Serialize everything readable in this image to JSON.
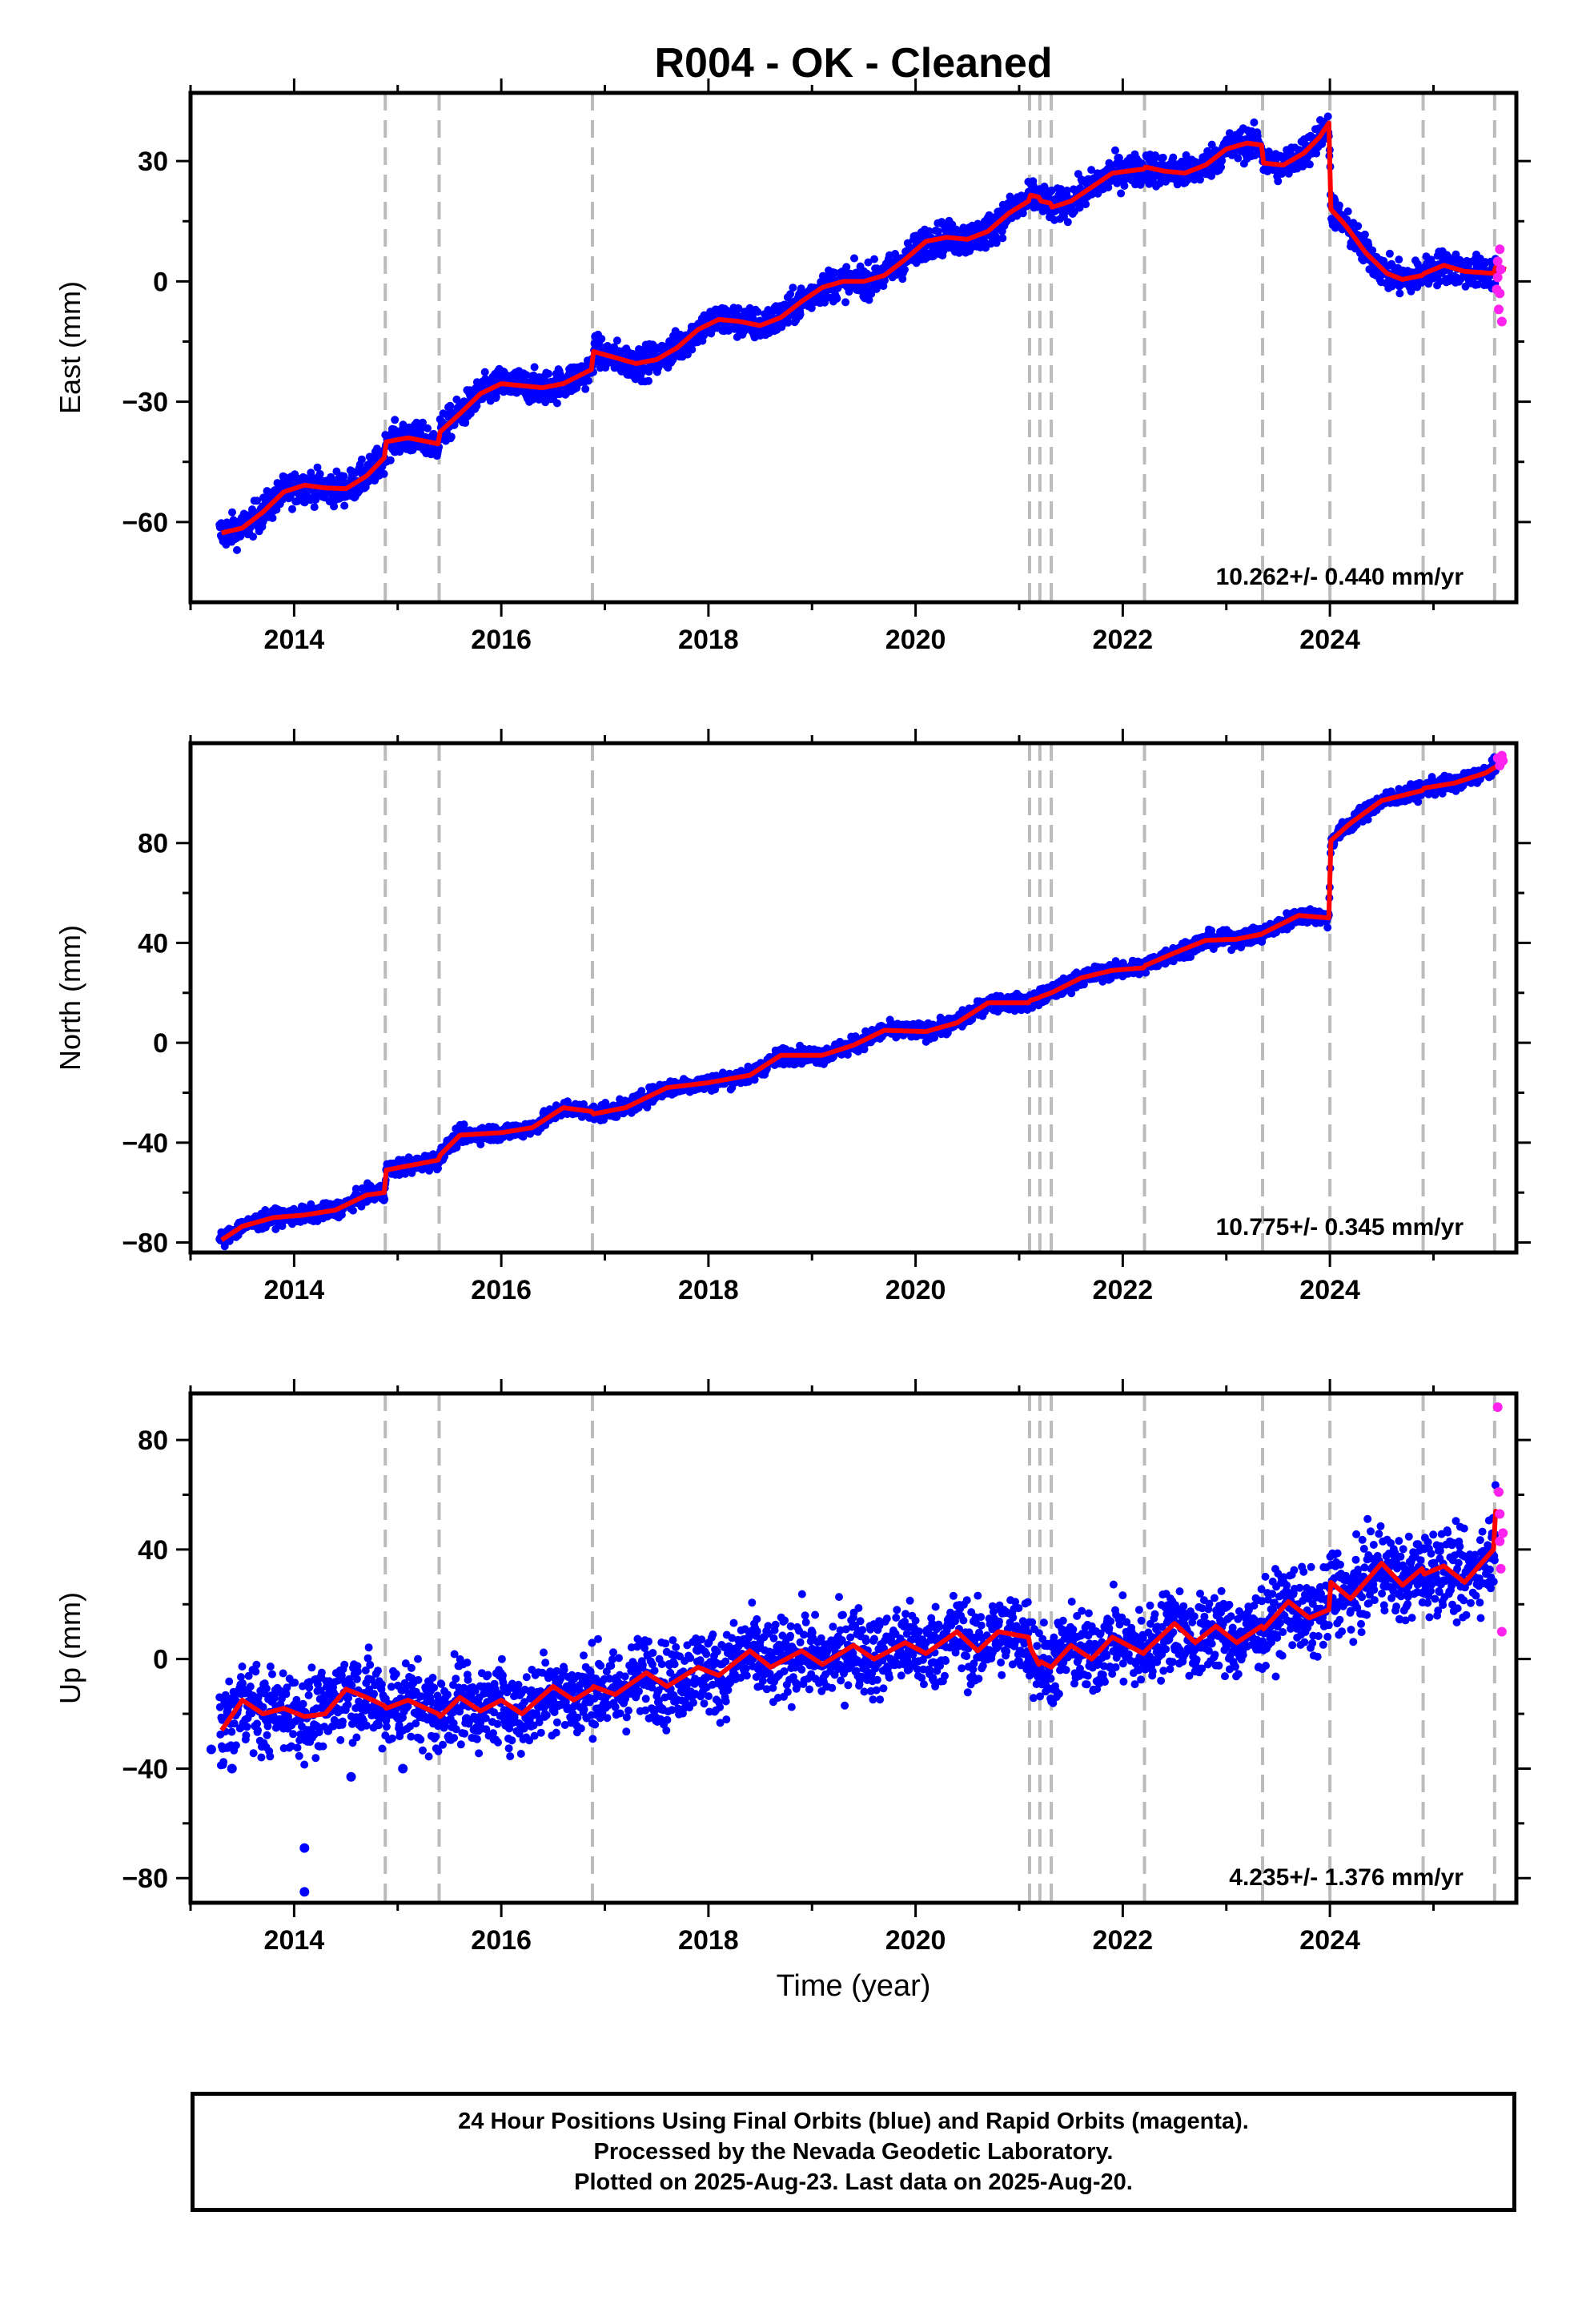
{
  "title": "R004  - OK - Cleaned",
  "colors": {
    "final": "#0000ff",
    "rapid": "#ff22ee",
    "model": "#ff0000",
    "offset_lines": "#bbbbbb"
  },
  "x_axis": {
    "label": "Time (year)",
    "range": [
      2013.0,
      2025.8
    ],
    "ticks": [
      "2014",
      "2016",
      "2018",
      "2020",
      "2022",
      "2024"
    ],
    "minor_step": 1
  },
  "offset_epochs": [
    2014.88,
    2015.4,
    2016.88,
    2021.1,
    2021.2,
    2021.31,
    2022.21,
    2023.35,
    2024.0,
    2024.9,
    2025.59
  ],
  "chart_data": [
    {
      "type": "scatter",
      "ylabel": "East (mm)",
      "ylim": [
        -80,
        47
      ],
      "yticks": [
        "30",
        "0",
        "−30",
        "−60"
      ],
      "ytick_values": [
        30,
        0,
        -30,
        -60
      ],
      "rate": "10.262+/- 0.440 mm/yr",
      "scatter": 2.0,
      "model": [
        [
          2013.3,
          -62.7
        ],
        [
          2013.5,
          -61.5
        ],
        [
          2013.7,
          -57.5
        ],
        [
          2013.9,
          -52.5
        ],
        [
          2014.1,
          -50.8
        ],
        [
          2014.3,
          -51.5
        ],
        [
          2014.5,
          -51.7
        ],
        [
          2014.7,
          -48.5
        ],
        [
          2014.87,
          -44.0
        ],
        [
          2014.89,
          -40.0
        ],
        [
          2015.1,
          -39.0
        ],
        [
          2015.39,
          -40.5
        ],
        [
          2015.41,
          -37.5
        ],
        [
          2015.6,
          -33.0
        ],
        [
          2015.8,
          -28.0
        ],
        [
          2016.0,
          -25.5
        ],
        [
          2016.2,
          -26.0
        ],
        [
          2016.4,
          -26.5
        ],
        [
          2016.6,
          -25.5
        ],
        [
          2016.87,
          -22.0
        ],
        [
          2016.89,
          -17.5
        ],
        [
          2017.1,
          -19.0
        ],
        [
          2017.3,
          -20.5
        ],
        [
          2017.5,
          -19.5
        ],
        [
          2017.7,
          -16.5
        ],
        [
          2017.9,
          -12.0
        ],
        [
          2018.1,
          -9.5
        ],
        [
          2018.3,
          -10.0
        ],
        [
          2018.5,
          -11.0
        ],
        [
          2018.7,
          -9.0
        ],
        [
          2018.9,
          -5.0
        ],
        [
          2019.1,
          -1.5
        ],
        [
          2019.3,
          0.0
        ],
        [
          2019.5,
          0.0
        ],
        [
          2019.7,
          1.5
        ],
        [
          2019.9,
          5.5
        ],
        [
          2020.1,
          10.0
        ],
        [
          2020.3,
          11.0
        ],
        [
          2020.5,
          10.5
        ],
        [
          2020.7,
          12.5
        ],
        [
          2020.9,
          17.0
        ],
        [
          2021.09,
          20.0
        ],
        [
          2021.11,
          21.5
        ],
        [
          2021.19,
          21.0
        ],
        [
          2021.21,
          20.0
        ],
        [
          2021.3,
          19.5
        ],
        [
          2021.32,
          18.5
        ],
        [
          2021.5,
          20.0
        ],
        [
          2021.7,
          23.5
        ],
        [
          2021.9,
          27.0
        ],
        [
          2022.2,
          28.0
        ],
        [
          2022.22,
          28.5
        ],
        [
          2022.4,
          27.5
        ],
        [
          2022.6,
          27.0
        ],
        [
          2022.8,
          29.0
        ],
        [
          2023.0,
          33.0
        ],
        [
          2023.2,
          34.5
        ],
        [
          2023.34,
          34.0
        ],
        [
          2023.36,
          29.5
        ],
        [
          2023.55,
          29.0
        ],
        [
          2023.75,
          32.0
        ],
        [
          2023.9,
          36.0
        ],
        [
          2023.99,
          39.5
        ],
        [
          2024.01,
          18.0
        ],
        [
          2024.15,
          14.0
        ],
        [
          2024.35,
          7.0
        ],
        [
          2024.55,
          2.0
        ],
        [
          2024.7,
          0.5
        ],
        [
          2024.89,
          1.5
        ],
        [
          2024.91,
          2.0
        ],
        [
          2025.1,
          4.0
        ],
        [
          2025.3,
          2.5
        ],
        [
          2025.58,
          2.0
        ],
        [
          2025.6,
          3.5
        ],
        [
          2025.7,
          3.0
        ]
      ],
      "rapid": [
        [
          2025.61,
          -2
        ],
        [
          2025.62,
          1
        ],
        [
          2025.62,
          5
        ],
        [
          2025.63,
          -7
        ],
        [
          2025.64,
          8
        ],
        [
          2025.64,
          -3
        ],
        [
          2025.65,
          3
        ],
        [
          2025.66,
          -10
        ]
      ]
    },
    {
      "type": "scatter",
      "ylabel": "North (mm)",
      "ylim": [
        -84,
        120
      ],
      "yticks": [
        "80",
        "40",
        "0",
        "−40",
        "−80"
      ],
      "ytick_values": [
        80,
        40,
        0,
        -40,
        -80
      ],
      "rate": "10.775+/- 0.345 mm/yr",
      "scatter": 1.6,
      "model": [
        [
          2013.3,
          -79.0
        ],
        [
          2013.5,
          -73.5
        ],
        [
          2013.8,
          -70.0
        ],
        [
          2014.1,
          -69.0
        ],
        [
          2014.4,
          -67.0
        ],
        [
          2014.7,
          -61.0
        ],
        [
          2014.87,
          -60.0
        ],
        [
          2014.89,
          -51.0
        ],
        [
          2015.39,
          -47.0
        ],
        [
          2015.41,
          -45.0
        ],
        [
          2015.6,
          -37.0
        ],
        [
          2016.0,
          -36.0
        ],
        [
          2016.3,
          -34.0
        ],
        [
          2016.6,
          -26.0
        ],
        [
          2016.87,
          -27.5
        ],
        [
          2016.89,
          -28.5
        ],
        [
          2017.2,
          -26.0
        ],
        [
          2017.6,
          -18.0
        ],
        [
          2018.0,
          -16.0
        ],
        [
          2018.4,
          -13.0
        ],
        [
          2018.7,
          -5.0
        ],
        [
          2019.1,
          -5.0
        ],
        [
          2019.4,
          -1.0
        ],
        [
          2019.7,
          5.0
        ],
        [
          2020.1,
          4.5
        ],
        [
          2020.4,
          8.0
        ],
        [
          2020.7,
          16.0
        ],
        [
          2021.09,
          16.0
        ],
        [
          2021.11,
          17.0
        ],
        [
          2021.19,
          18.0
        ],
        [
          2021.21,
          18.5
        ],
        [
          2021.31,
          20.0
        ],
        [
          2021.6,
          26.0
        ],
        [
          2021.9,
          29.0
        ],
        [
          2022.2,
          30.0
        ],
        [
          2022.22,
          31.0
        ],
        [
          2022.5,
          36.0
        ],
        [
          2022.8,
          41.0
        ],
        [
          2023.1,
          41.5
        ],
        [
          2023.34,
          43.5
        ],
        [
          2023.36,
          44.0
        ],
        [
          2023.7,
          51.0
        ],
        [
          2023.99,
          50.0
        ],
        [
          2024.01,
          81.0
        ],
        [
          2024.2,
          88.0
        ],
        [
          2024.5,
          97.0
        ],
        [
          2024.89,
          101.0
        ],
        [
          2024.91,
          102.0
        ],
        [
          2025.2,
          104.0
        ],
        [
          2025.5,
          108.0
        ],
        [
          2025.68,
          112.5
        ]
      ],
      "rapid": [
        [
          2025.62,
          114
        ],
        [
          2025.64,
          111
        ],
        [
          2025.66,
          115
        ],
        [
          2025.67,
          113
        ]
      ]
    },
    {
      "type": "scatter",
      "ylabel": "Up (mm)",
      "ylim": [
        -89,
        97
      ],
      "yticks": [
        "80",
        "40",
        "0",
        "−40",
        "−80"
      ],
      "ytick_values": [
        80,
        40,
        0,
        -40,
        -80
      ],
      "rate": "4.235+/- 1.376 mm/yr",
      "scatter": 7.5,
      "model": [
        [
          2013.3,
          -26.0
        ],
        [
          2013.5,
          -15.0
        ],
        [
          2013.7,
          -20.0
        ],
        [
          2013.9,
          -18.0
        ],
        [
          2014.1,
          -21.0
        ],
        [
          2014.3,
          -20.0
        ],
        [
          2014.5,
          -11.0
        ],
        [
          2014.7,
          -14.0
        ],
        [
          2014.87,
          -17.0
        ],
        [
          2014.89,
          -18.0
        ],
        [
          2015.1,
          -15.0
        ],
        [
          2015.39,
          -20.0
        ],
        [
          2015.41,
          -21.0
        ],
        [
          2015.6,
          -14.0
        ],
        [
          2015.8,
          -19.0
        ],
        [
          2016.0,
          -15.0
        ],
        [
          2016.2,
          -20.0
        ],
        [
          2016.5,
          -10.0
        ],
        [
          2016.7,
          -15.0
        ],
        [
          2016.87,
          -11.0
        ],
        [
          2016.89,
          -10.0
        ],
        [
          2017.1,
          -13.0
        ],
        [
          2017.4,
          -5.0
        ],
        [
          2017.6,
          -10.0
        ],
        [
          2017.9,
          -3.0
        ],
        [
          2018.1,
          -6.0
        ],
        [
          2018.4,
          3.0
        ],
        [
          2018.6,
          -3.0
        ],
        [
          2018.9,
          3.0
        ],
        [
          2019.1,
          -2.0
        ],
        [
          2019.4,
          5.0
        ],
        [
          2019.6,
          0.0
        ],
        [
          2019.9,
          6.0
        ],
        [
          2020.1,
          2.0
        ],
        [
          2020.4,
          10.0
        ],
        [
          2020.6,
          3.0
        ],
        [
          2020.8,
          10.0
        ],
        [
          2021.09,
          8.0
        ],
        [
          2021.11,
          4.0
        ],
        [
          2021.19,
          -2.0
        ],
        [
          2021.21,
          -1.0
        ],
        [
          2021.31,
          -3.0
        ],
        [
          2021.5,
          5.0
        ],
        [
          2021.7,
          0.0
        ],
        [
          2021.9,
          8.0
        ],
        [
          2022.2,
          2.0
        ],
        [
          2022.22,
          3.0
        ],
        [
          2022.5,
          13.0
        ],
        [
          2022.7,
          6.0
        ],
        [
          2022.9,
          12.0
        ],
        [
          2023.1,
          6.0
        ],
        [
          2023.34,
          12.0
        ],
        [
          2023.36,
          11.0
        ],
        [
          2023.6,
          21.0
        ],
        [
          2023.8,
          15.0
        ],
        [
          2023.99,
          18.0
        ],
        [
          2024.01,
          28.0
        ],
        [
          2024.2,
          22.0
        ],
        [
          2024.5,
          35.0
        ],
        [
          2024.7,
          27.0
        ],
        [
          2024.89,
          33.0
        ],
        [
          2024.91,
          31.0
        ],
        [
          2025.1,
          34.0
        ],
        [
          2025.3,
          28.0
        ],
        [
          2025.58,
          40.0
        ],
        [
          2025.6,
          54.0
        ],
        [
          2025.66,
          52.0
        ]
      ],
      "rapid": [
        [
          2025.62,
          92
        ],
        [
          2025.63,
          61
        ],
        [
          2025.64,
          53
        ],
        [
          2025.64,
          43
        ],
        [
          2025.65,
          33
        ],
        [
          2025.66,
          10
        ],
        [
          2025.67,
          46
        ]
      ],
      "outliers": [
        [
          2014.1,
          -69
        ],
        [
          2014.1,
          -85
        ],
        [
          2013.2,
          -33
        ],
        [
          2013.4,
          -40
        ],
        [
          2014.55,
          -43
        ],
        [
          2015.05,
          -40
        ]
      ]
    }
  ],
  "footer": {
    "line1": "24 Hour Positions Using Final Orbits (blue) and Rapid Orbits (magenta).",
    "line2": "Processed by the Nevada Geodetic Laboratory.",
    "line3": "Plotted on 2025-Aug-23. Last data on 2025-Aug-20."
  }
}
